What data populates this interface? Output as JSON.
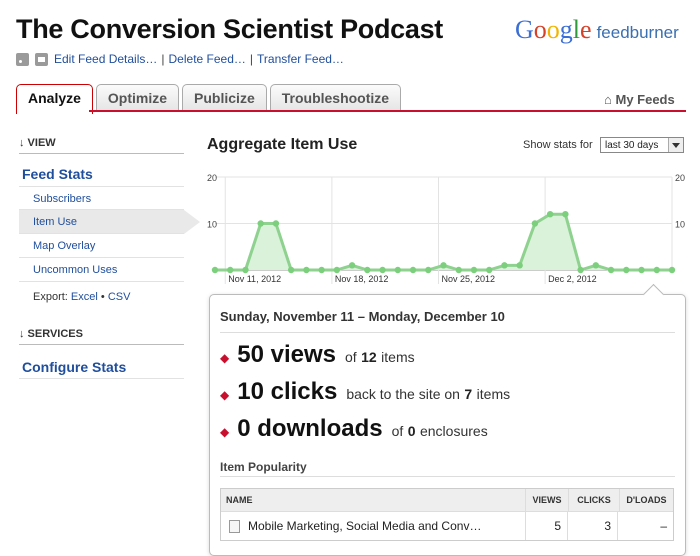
{
  "header": {
    "title": "The Conversion Scientist Podcast",
    "logo_google": "Google",
    "logo_feedburner": "feedburner",
    "links": [
      "Edit Feed Details…",
      "Delete Feed…",
      "Transfer Feed…"
    ],
    "separator": "|"
  },
  "tabs": [
    {
      "label": "Analyze",
      "active": true
    },
    {
      "label": "Optimize",
      "active": false
    },
    {
      "label": "Publicize",
      "active": false
    },
    {
      "label": "Troubleshootize",
      "active": false
    }
  ],
  "my_feeds": "My Feeds",
  "sidebar": {
    "view_heading": "↓ VIEW",
    "feed_stats": "Feed Stats",
    "items": [
      "Subscribers",
      "Item Use",
      "Map Overlay",
      "Uncommon Uses"
    ],
    "selected_index": 1,
    "export_label": "Export:",
    "export_excel": "Excel",
    "export_dot": "•",
    "export_csv": "CSV",
    "services_heading": "↓ SERVICES",
    "configure_stats": "Configure Stats"
  },
  "main": {
    "title": "Aggregate Item Use",
    "show_stats_label": "Show stats for",
    "show_stats_value": "last 30 days"
  },
  "chart_data": {
    "type": "area",
    "x": [
      "Nov 10",
      "Nov 11",
      "Nov 12",
      "Nov 13",
      "Nov 14",
      "Nov 15",
      "Nov 16",
      "Nov 17",
      "Nov 18",
      "Nov 19",
      "Nov 20",
      "Nov 21",
      "Nov 22",
      "Nov 23",
      "Nov 24",
      "Nov 25",
      "Nov 26",
      "Nov 27",
      "Nov 28",
      "Nov 29",
      "Nov 30",
      "Dec 1",
      "Dec 2",
      "Dec 3",
      "Dec 4",
      "Dec 5",
      "Dec 6",
      "Dec 7",
      "Dec 8",
      "Dec 9",
      "Dec 10"
    ],
    "series": [
      {
        "values": [
          0,
          0,
          0,
          10,
          10,
          0,
          0,
          0,
          0,
          1,
          0,
          0,
          0,
          0,
          0,
          1,
          0,
          0,
          0,
          1,
          1,
          10,
          12,
          12,
          0,
          1,
          0,
          0,
          0,
          0,
          0
        ]
      }
    ],
    "ylim": [
      0,
      20
    ],
    "y_ticks": [
      "10",
      "20"
    ],
    "x_tick_labels": [
      "Nov 11, 2012",
      "Nov 18, 2012",
      "Nov 25, 2012",
      "Dec 2, 2012"
    ],
    "x_tick_index": [
      1,
      8,
      15,
      22
    ],
    "colors": {
      "line": "#8fd18f",
      "fill": "#d9f2d9",
      "point": "#7ccf7c"
    }
  },
  "summary": {
    "range": "Sunday, November 11 – Monday, December 10",
    "views": {
      "big": "50 views",
      "of": "of",
      "n": "12",
      "suffix": "items"
    },
    "clicks": {
      "big": "10 clicks",
      "pre": "back to the site on",
      "n": "7",
      "suffix": "items"
    },
    "downloads": {
      "big": "0 downloads",
      "of": "of",
      "n": "0",
      "suffix": "enclosures"
    }
  },
  "popularity": {
    "heading": "Item Popularity",
    "columns": [
      "NAME",
      "VIEWS",
      "CLICKS",
      "D'LOADS"
    ],
    "rows": [
      {
        "name": "Mobile Marketing, Social Media and Conv…",
        "views": "5",
        "clicks": "3",
        "dloads": "–"
      }
    ]
  },
  "colors": {
    "accent": "#c8102e",
    "link": "#1f4e9c"
  }
}
